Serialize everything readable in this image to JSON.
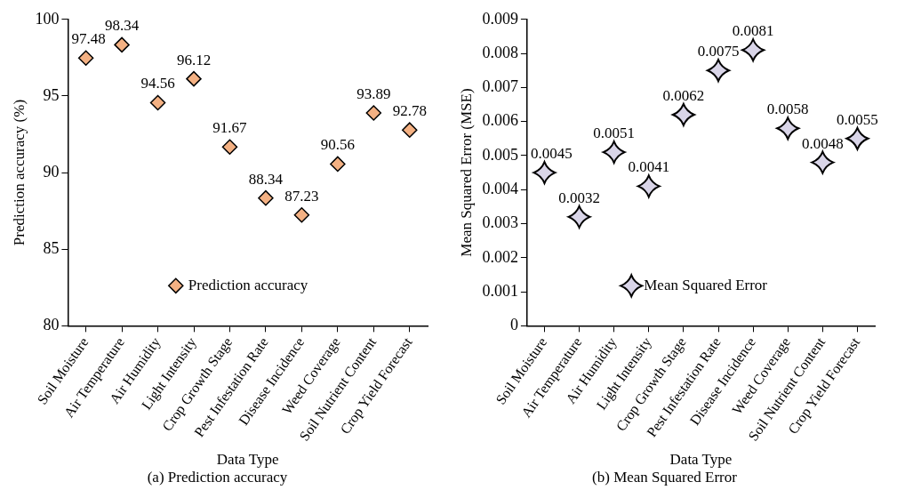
{
  "chart_data": [
    {
      "type": "scatter",
      "title": "(a) Prediction accuracy",
      "xlabel": "Data Type",
      "ylabel": "Prediction accuracy (%)",
      "categories": [
        "Soil Moisture",
        "Air Temperature",
        "Air Humidity",
        "Light Intensity",
        "Crop Growth Stage",
        "Pest Infestation Rate",
        "Disease Incidence",
        "Weed Coverage",
        "Soil Nutrient Content",
        "Crop Yield Forecast"
      ],
      "series": [
        {
          "name": "Prediction accuracy",
          "color": "#f4b183",
          "values": [
            97.48,
            98.34,
            94.56,
            96.12,
            91.67,
            88.34,
            87.23,
            90.56,
            93.89,
            92.78
          ]
        }
      ],
      "ylim": [
        80,
        100
      ],
      "yticks": [
        80,
        85,
        90,
        95,
        100
      ],
      "grid": false,
      "legend": "bottom",
      "marker": "diamond",
      "data_labels": true
    },
    {
      "type": "scatter",
      "title": "(b) Mean Squared Error",
      "xlabel": "Data Type",
      "ylabel": "Mean Squared Error (MSE)",
      "categories": [
        "Soil Moisture",
        "Air Temperature",
        "Air Humidity",
        "Light Intensity",
        "Crop Growth Stage",
        "Pest Infestation Rate",
        "Disease Incidence",
        "Weed Coverage",
        "Soil Nutrient Content",
        "Crop Yield Forecast"
      ],
      "series": [
        {
          "name": "Mean Squared Error",
          "color": "#d9d5e8",
          "values": [
            0.0045,
            0.0032,
            0.0051,
            0.0041,
            0.0062,
            0.0075,
            0.0081,
            0.0058,
            0.0048,
            0.0055
          ]
        }
      ],
      "ylim": [
        0,
        0.009
      ],
      "yticks": [
        0,
        0.001,
        0.002,
        0.003,
        0.004,
        0.005,
        0.006,
        0.007,
        0.008,
        0.009
      ],
      "grid": false,
      "legend": "bottom",
      "marker": "star",
      "data_labels": true
    }
  ]
}
